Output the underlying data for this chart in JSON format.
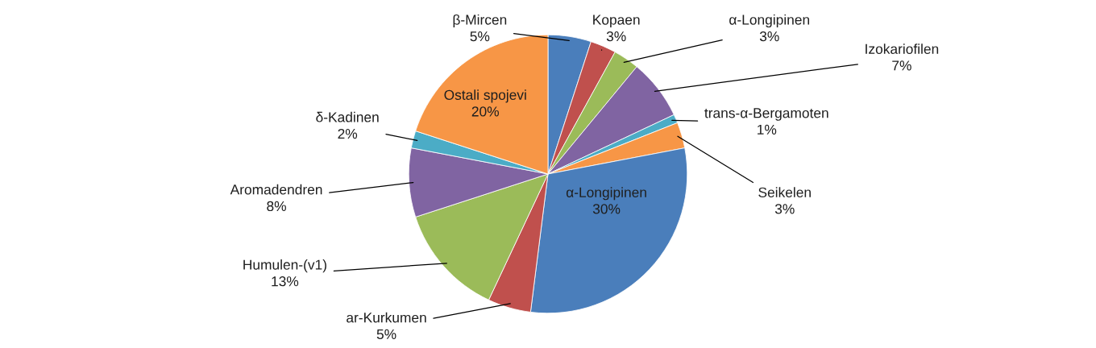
{
  "chart_data": {
    "type": "pie",
    "categories": [
      "β-Mircen",
      "Kopaen",
      "α-Longipinen",
      "Izokariofilen",
      "trans-α-Bergamoten",
      "Seikelen",
      "α-Longipinen",
      "ar-Kurkumen",
      "Humulen-(v1)",
      "Aromadendren",
      "δ-Kadinen",
      "Ostali spojevi"
    ],
    "values": [
      5,
      3,
      3,
      7,
      1,
      3,
      30,
      5,
      13,
      8,
      2,
      20
    ],
    "value_labels": [
      "5%",
      "3%",
      "3%",
      "7%",
      "1%",
      "3%",
      "30%",
      "5%",
      "13%",
      "8%",
      "2%",
      "20%"
    ],
    "colors": [
      "#4a7ebb",
      "#c0504d",
      "#9bbb59",
      "#8064a2",
      "#4bacc6",
      "#f79646",
      "#4a7ebb",
      "#c0504d",
      "#9bbb59",
      "#8064a2",
      "#4bacc6",
      "#f79646"
    ]
  }
}
